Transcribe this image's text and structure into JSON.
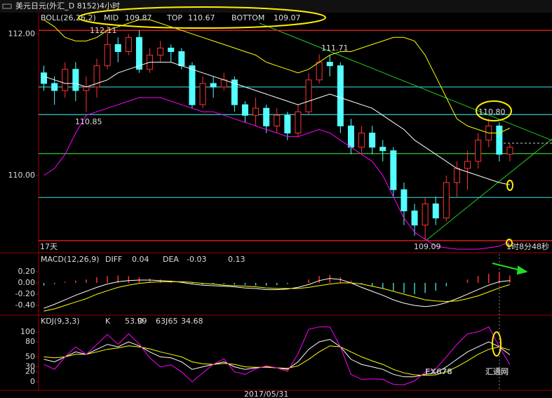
{
  "title": "美元日元(外汇_D 8152)4小时",
  "chart_data": [
    {
      "type": "candlestick",
      "indicator": "BOLL(26,26,2)",
      "ylim": [
        108.93,
        112.3
      ],
      "yticks": [
        {
          "value": 110,
          "label": "110.00"
        },
        {
          "value": 112,
          "label": "112.00"
        }
      ],
      "open": [
        111.45,
        111.3,
        111.2,
        111.5,
        111.2,
        111.25,
        111.55,
        111.85,
        111.75,
        111.95,
        111.5,
        111.7,
        111.8,
        111.75,
        111.55,
        111.0,
        111.3,
        111.25,
        111.35,
        111.0,
        110.85,
        110.95,
        110.7,
        110.85,
        110.6,
        110.9,
        111.35,
        111.6,
        111.55,
        110.7,
        110.4,
        110.6,
        110.4,
        110.35,
        109.8,
        109.5,
        109.3,
        109.6,
        109.4,
        109.9,
        110.1,
        110.2,
        110.5,
        110.7,
        110.3
      ],
      "high": [
        111.55,
        111.4,
        111.6,
        111.6,
        111.4,
        111.65,
        112.11,
        111.95,
        112.0,
        112.05,
        111.8,
        111.9,
        111.85,
        111.8,
        111.6,
        111.4,
        111.4,
        111.45,
        111.4,
        111.05,
        111.1,
        111.0,
        110.95,
        110.9,
        111.0,
        111.45,
        111.71,
        111.7,
        111.6,
        110.8,
        110.7,
        110.7,
        110.5,
        110.4,
        109.9,
        109.6,
        109.7,
        109.7,
        110.0,
        110.2,
        110.35,
        110.6,
        110.8,
        110.75,
        110.45
      ],
      "low": [
        111.2,
        111.0,
        111.1,
        111.05,
        110.9,
        111.1,
        111.5,
        111.6,
        111.7,
        111.45,
        111.45,
        111.6,
        111.6,
        111.5,
        110.95,
        110.95,
        111.1,
        111.2,
        110.9,
        110.75,
        110.7,
        110.6,
        110.6,
        110.5,
        110.55,
        110.85,
        111.3,
        111.4,
        110.6,
        110.3,
        110.3,
        110.3,
        110.2,
        109.7,
        109.3,
        109.15,
        109.09,
        109.3,
        109.35,
        109.7,
        109.8,
        110.1,
        110.4,
        110.2,
        110.2
      ],
      "close": [
        111.3,
        111.2,
        111.5,
        111.2,
        111.25,
        111.55,
        111.85,
        111.75,
        111.95,
        111.5,
        111.7,
        111.8,
        111.75,
        111.55,
        111.0,
        111.3,
        111.25,
        111.35,
        111.0,
        110.85,
        110.95,
        110.7,
        110.85,
        110.6,
        110.9,
        111.35,
        111.6,
        111.55,
        110.7,
        110.4,
        110.6,
        110.4,
        110.35,
        109.8,
        109.5,
        109.3,
        109.6,
        109.4,
        109.9,
        110.1,
        110.2,
        110.5,
        110.7,
        110.3,
        110.4
      ],
      "up_color": "#ff3232",
      "down_color": "#54ffff",
      "series": [
        {
          "name": "MID",
          "color": "#ffffff",
          "values": [
            111.4,
            111.35,
            111.3,
            111.3,
            111.25,
            111.3,
            111.35,
            111.45,
            111.5,
            111.55,
            111.6,
            111.6,
            111.6,
            111.55,
            111.5,
            111.45,
            111.4,
            111.35,
            111.3,
            111.25,
            111.2,
            111.15,
            111.1,
            111.05,
            111.0,
            111.05,
            111.1,
            111.15,
            111.1,
            111.05,
            111.0,
            110.95,
            110.85,
            110.75,
            110.65,
            110.5,
            110.4,
            110.3,
            110.2,
            110.1,
            110.05,
            110.0,
            109.95,
            109.9,
            109.87
          ]
        },
        {
          "name": "TOP",
          "color": "#ffff00",
          "values": [
            112.2,
            112.1,
            111.95,
            111.9,
            111.9,
            111.95,
            112.05,
            112.1,
            112.15,
            112.2,
            112.2,
            112.15,
            112.1,
            112.05,
            112.0,
            111.95,
            111.9,
            111.85,
            111.8,
            111.75,
            111.7,
            111.6,
            111.55,
            111.5,
            111.45,
            111.5,
            111.6,
            111.7,
            111.75,
            111.75,
            111.8,
            111.85,
            111.9,
            111.95,
            111.95,
            111.9,
            111.7,
            111.4,
            111.1,
            110.8,
            110.7,
            110.65,
            110.6,
            110.6,
            110.67
          ]
        },
        {
          "name": "BOTTOM",
          "color": "#ff00ff",
          "values": [
            110.0,
            110.1,
            110.3,
            110.6,
            110.85,
            110.9,
            110.95,
            111.0,
            111.05,
            111.1,
            111.1,
            111.1,
            111.05,
            111.0,
            110.95,
            110.9,
            110.9,
            110.85,
            110.8,
            110.75,
            110.7,
            110.65,
            110.6,
            110.55,
            110.55,
            110.6,
            110.65,
            110.6,
            110.5,
            110.4,
            110.3,
            110.2,
            110.0,
            109.7,
            109.4,
            109.2,
            109.1,
            109.0,
            108.98,
            108.96,
            108.96,
            108.96,
            108.98,
            109.0,
            109.07
          ]
        }
      ],
      "hlines": [
        {
          "value": 112.05,
          "color": "#ff2020"
        },
        {
          "value": 111.25,
          "color": "#33cccc"
        },
        {
          "value": 110.86,
          "color": "#33cccc"
        },
        {
          "value": 110.31,
          "color": "#33cc33"
        },
        {
          "value": 109.69,
          "color": "#33cccc"
        },
        {
          "value": 109.08,
          "color": "#ff2020"
        }
      ],
      "annotations": [
        {
          "text": "112.11",
          "color": "#ff4040"
        },
        {
          "text": "111.71",
          "color": "#ff4040"
        },
        {
          "text": "110.85",
          "color": "#33dddd"
        },
        {
          "text": "110.80",
          "color": "#ff4040"
        },
        {
          "text": "109.09",
          "color": "#33dddd"
        },
        {
          "text": "17天",
          "color": "#ffffff"
        },
        {
          "text": "1时8分48秒",
          "color": "#ffffff"
        }
      ]
    },
    {
      "type": "bar",
      "indicator": "MACD(12,26,9)",
      "ylim": [
        -0.56,
        0.51
      ],
      "yticks": [
        {
          "value": 0.2,
          "label": "0.20"
        },
        {
          "value": 0,
          "label": "0.00"
        },
        {
          "value": -0.2,
          "label": "-0.20"
        },
        {
          "value": -0.4,
          "label": "-0.40"
        }
      ],
      "values": [
        -0.05,
        -0.02,
        0.02,
        0.04,
        0.06,
        0.1,
        0.12,
        0.13,
        0.12,
        0.1,
        0.08,
        0.06,
        0.04,
        0.0,
        -0.02,
        -0.03,
        -0.02,
        -0.02,
        -0.03,
        -0.04,
        -0.05,
        -0.05,
        -0.04,
        -0.02,
        0.0,
        0.06,
        0.12,
        0.14,
        0.1,
        0.04,
        -0.02,
        -0.06,
        -0.1,
        -0.14,
        -0.18,
        -0.2,
        -0.18,
        -0.14,
        -0.06,
        0.0,
        0.06,
        0.12,
        0.16,
        0.18,
        0.13
      ],
      "up_color": "#ff3232",
      "down_color": "#33cccc",
      "series": [
        {
          "name": "DIFF",
          "color": "#ffffff",
          "values": [
            -0.45,
            -0.38,
            -0.3,
            -0.22,
            -0.15,
            -0.08,
            -0.02,
            0.02,
            0.04,
            0.05,
            0.05,
            0.04,
            0.03,
            0.01,
            -0.02,
            -0.04,
            -0.05,
            -0.06,
            -0.07,
            -0.09,
            -0.1,
            -0.12,
            -0.12,
            -0.11,
            -0.08,
            -0.03,
            0.04,
            0.08,
            0.06,
            0.0,
            -0.08,
            -0.15,
            -0.22,
            -0.3,
            -0.36,
            -0.4,
            -0.42,
            -0.4,
            -0.35,
            -0.28,
            -0.2,
            -0.12,
            -0.04,
            0.02,
            0.04
          ]
        },
        {
          "name": "DEA",
          "color": "#ffff00",
          "values": [
            -0.5,
            -0.46,
            -0.4,
            -0.34,
            -0.28,
            -0.2,
            -0.14,
            -0.08,
            -0.04,
            -0.01,
            0.01,
            0.02,
            0.02,
            0.02,
            0.01,
            -0.01,
            -0.02,
            -0.04,
            -0.05,
            -0.06,
            -0.07,
            -0.09,
            -0.1,
            -0.1,
            -0.1,
            -0.08,
            -0.05,
            -0.02,
            0.0,
            0.0,
            -0.02,
            -0.06,
            -0.1,
            -0.15,
            -0.2,
            -0.25,
            -0.3,
            -0.32,
            -0.33,
            -0.32,
            -0.28,
            -0.23,
            -0.16,
            -0.09,
            -0.03
          ]
        }
      ]
    },
    {
      "type": "line",
      "indicator": "KDJ(9,3,3)",
      "ylim": [
        -15.5,
        132
      ],
      "yticks": [
        100,
        80,
        50,
        30,
        20,
        0
      ],
      "categories": [
        null,
        null,
        null,
        null,
        null,
        null,
        null,
        null,
        null,
        null,
        null,
        null,
        null,
        null,
        null,
        null,
        null,
        null,
        null,
        null,
        null,
        "2017/05/31",
        null,
        null,
        null,
        null,
        null,
        null,
        null,
        null,
        null,
        null,
        null,
        null,
        null,
        null,
        null,
        null,
        null,
        null,
        null,
        null,
        null,
        null,
        null
      ],
      "series": [
        {
          "name": "K",
          "color": "#ffffff",
          "values": [
            45,
            40,
            50,
            60,
            55,
            65,
            75,
            70,
            80,
            72,
            60,
            50,
            48,
            40,
            25,
            30,
            35,
            40,
            30,
            25,
            28,
            30,
            28,
            25,
            40,
            65,
            80,
            85,
            70,
            45,
            35,
            30,
            25,
            15,
            10,
            10,
            15,
            18,
            30,
            45,
            60,
            70,
            80,
            70,
            53.99
          ]
        },
        {
          "name": "D",
          "color": "#ffff00",
          "values": [
            50,
            48,
            50,
            55,
            55,
            60,
            65,
            68,
            72,
            70,
            66,
            60,
            55,
            50,
            40,
            36,
            35,
            37,
            35,
            30,
            29,
            29,
            28,
            27,
            32,
            45,
            60,
            72,
            70,
            60,
            50,
            42,
            35,
            25,
            18,
            14,
            13,
            14,
            20,
            30,
            42,
            55,
            65,
            70,
            63.65
          ]
        },
        {
          "name": "J",
          "color": "#ff00ff",
          "values": [
            35,
            25,
            50,
            70,
            55,
            75,
            95,
            75,
            96,
            76,
            48,
            30,
            34,
            20,
            0,
            18,
            35,
            46,
            20,
            15,
            26,
            32,
            28,
            21,
            56,
            105,
            110,
            110,
            70,
            15,
            5,
            6,
            5,
            -5,
            -6,
            2,
            19,
            26,
            50,
            75,
            96,
            100,
            110,
            70,
            34.68
          ]
        }
      ]
    }
  ],
  "watermark": [
    "FX678",
    "汇通网"
  ]
}
